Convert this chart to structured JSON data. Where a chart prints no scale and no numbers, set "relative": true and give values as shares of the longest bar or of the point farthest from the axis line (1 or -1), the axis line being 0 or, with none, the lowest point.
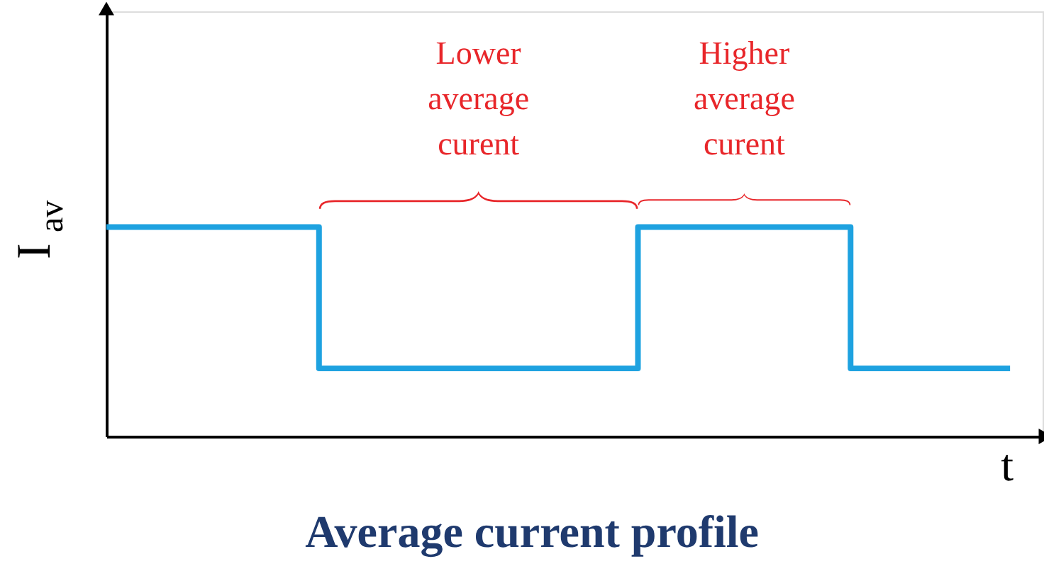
{
  "chart_data": {
    "type": "step",
    "title": "Average current profile",
    "xlabel": "t",
    "ylabel": "I$_{av}$",
    "relative": true,
    "tick_labels": false,
    "categories": [
      null,
      null,
      null,
      null,
      null,
      null,
      null,
      null,
      null,
      null,
      null,
      null,
      null,
      null,
      null,
      null,
      null,
      null
    ],
    "series": [
      {
        "color": "#1ea2e0",
        "values": [
          1,
          1,
          1,
          1,
          0.325,
          0.325,
          0.325,
          0.325,
          0.325,
          0.325,
          1,
          1,
          1,
          1,
          0.325,
          0.325,
          0.325,
          0.325
        ]
      }
    ],
    "annotations": [
      "Lower average curent",
      "Higher average curent"
    ]
  }
}
